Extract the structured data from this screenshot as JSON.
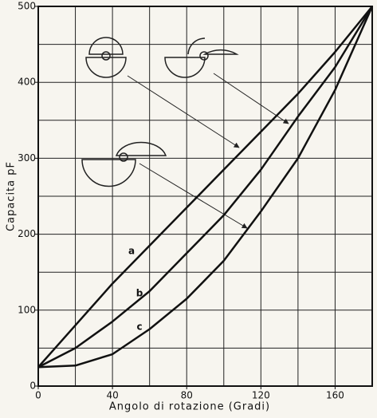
{
  "chart_data": {
    "type": "line",
    "x_label": "Angolo di rotazione (Gradi)",
    "y_label": "Capacita pF",
    "x": [
      0,
      20,
      40,
      60,
      80,
      100,
      120,
      140,
      160,
      180
    ],
    "series": [
      {
        "name": "a",
        "color": "#111111",
        "values": [
          25,
          80,
          135,
          185,
          235,
          285,
          335,
          385,
          440,
          500
        ]
      },
      {
        "name": "b",
        "color": "#111111",
        "values": [
          25,
          50,
          85,
          125,
          175,
          225,
          285,
          355,
          420,
          500
        ]
      },
      {
        "name": "c",
        "color": "#111111",
        "values": [
          25,
          27,
          42,
          75,
          115,
          165,
          230,
          300,
          390,
          500
        ]
      }
    ],
    "xlim": [
      0,
      180
    ],
    "ylim": [
      0,
      500
    ],
    "xticks": [
      0,
      40,
      80,
      120,
      160
    ],
    "yticks": [
      0,
      100,
      200,
      300,
      400,
      500
    ],
    "xgrid": [
      0,
      20,
      40,
      60,
      80,
      100,
      120,
      140,
      160,
      180
    ],
    "ygrid": [
      0,
      50,
      100,
      150,
      200,
      250,
      300,
      350,
      400,
      450,
      500
    ],
    "grid": true
  }
}
